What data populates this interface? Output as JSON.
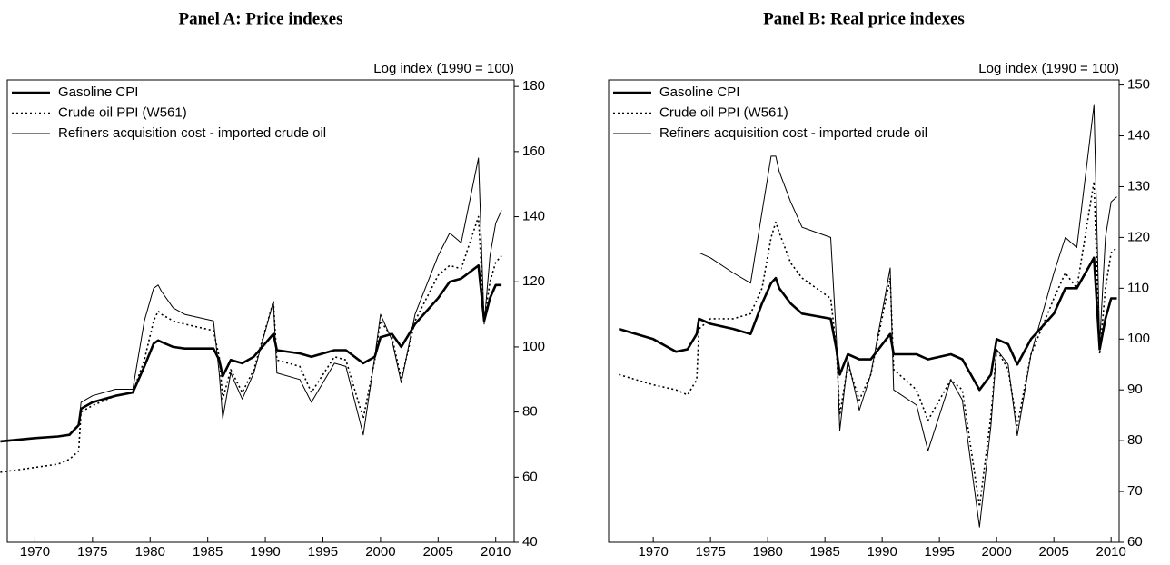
{
  "chart_data": [
    {
      "type": "line",
      "title": "Panel A:  Price indexes",
      "y_label": "Log index (1990 = 100)",
      "x": [
        1967,
        1970,
        1972,
        1973,
        1973.8,
        1974,
        1975,
        1977,
        1978.5,
        1979.5,
        1980.3,
        1980.7,
        1981,
        1982,
        1983,
        1985.5,
        1986,
        1986.3,
        1987,
        1988,
        1989,
        1990.7,
        1991,
        1993,
        1994,
        1996,
        1997,
        1998.5,
        1999.5,
        2000,
        2001,
        2001.8,
        2003,
        2005,
        2006,
        2007,
        2008.5,
        2009,
        2009.5,
        2010,
        2010.5
      ],
      "series": [
        {
          "name": "Gasoline CPI",
          "color": "#000000",
          "line_style": "thick",
          "values": [
            71,
            72,
            72.5,
            73,
            76,
            81,
            83,
            85,
            86,
            94,
            101,
            102,
            101.5,
            100,
            99.5,
            99.5,
            96,
            91,
            96,
            95,
            97,
            104,
            99,
            98,
            97,
            99,
            99,
            95,
            97,
            103,
            104,
            100,
            107,
            115,
            120,
            121,
            125,
            108,
            115,
            119,
            119
          ]
        },
        {
          "name": "Crude oil PPI (W561)",
          "color": "#000000",
          "line_style": "dotted",
          "values": [
            61.5,
            63,
            64,
            65.5,
            68,
            80,
            82,
            85,
            86,
            96,
            108,
            111,
            110,
            108,
            107,
            105,
            97,
            84,
            93,
            86,
            93,
            114,
            96,
            94,
            86,
            97,
            96,
            78,
            96,
            108,
            103,
            90,
            108,
            122,
            125,
            124,
            140,
            108,
            120,
            126,
            128
          ]
        },
        {
          "name": "Refiners acquisition cost - imported crude oil",
          "color": "#000000",
          "line_style": "thin",
          "values": [
            null,
            null,
            null,
            null,
            76,
            83,
            85,
            87,
            87,
            108,
            118,
            119,
            117,
            112,
            110,
            108,
            92,
            78,
            92,
            84,
            92,
            114,
            92,
            90,
            83,
            95,
            94,
            73,
            97,
            110,
            102,
            89,
            110,
            128,
            135,
            132,
            158,
            107,
            128,
            138,
            142
          ]
        }
      ],
      "xlim": [
        1967.6,
        2011.6
      ],
      "xticks": [
        1970,
        1975,
        1980,
        1985,
        1990,
        1995,
        2000,
        2005,
        2010
      ],
      "ylim": [
        40,
        182
      ],
      "yticks": [
        40,
        60,
        80,
        100,
        120,
        140,
        160,
        180
      ],
      "y_axis_side": "right",
      "legend": "top-left"
    },
    {
      "type": "line",
      "title": "Panel B:  Real price indexes",
      "y_label": "Log index (1990 = 100)",
      "x": [
        1967,
        1970,
        1972,
        1973,
        1973.8,
        1974,
        1975,
        1977,
        1978.5,
        1979.5,
        1980.3,
        1980.7,
        1981,
        1982,
        1983,
        1985.5,
        1986,
        1986.3,
        1987,
        1988,
        1989,
        1990.7,
        1991,
        1993,
        1994,
        1996,
        1997,
        1998.5,
        1999.5,
        2000,
        2001,
        2001.8,
        2003,
        2005,
        2006,
        2007,
        2008.5,
        2009,
        2009.5,
        2010,
        2010.5
      ],
      "series": [
        {
          "name": "Gasoline CPI",
          "color": "#000000",
          "line_style": "thick",
          "values": [
            102,
            100,
            97.5,
            98,
            101,
            104,
            103,
            102,
            101,
            107,
            111,
            112,
            110,
            107,
            105,
            104,
            98,
            93,
            97,
            96,
            96,
            101,
            97,
            97,
            96,
            97,
            96,
            90,
            93,
            100,
            99,
            95,
            100,
            105,
            110,
            110,
            116,
            98,
            104,
            108,
            108
          ]
        },
        {
          "name": "Crude oil PPI (W561)",
          "color": "#000000",
          "line_style": "dotted",
          "values": [
            93,
            91,
            90,
            89,
            92,
            102,
            104,
            104,
            105,
            110,
            120,
            123,
            121,
            115,
            112,
            108,
            98,
            85,
            95,
            88,
            93,
            112,
            94,
            90,
            84,
            92,
            90,
            67,
            85,
            98,
            94,
            83,
            97,
            108,
            113,
            110,
            131,
            97,
            110,
            117,
            118
          ]
        },
        {
          "name": "Refiners acquisition cost - imported crude oil",
          "color": "#000000",
          "line_style": "thin",
          "values": [
            null,
            null,
            null,
            null,
            null,
            117,
            116,
            113,
            111,
            125,
            136,
            136,
            133,
            127,
            122,
            120,
            100,
            82,
            96,
            86,
            93,
            114,
            90,
            87,
            78,
            92,
            88,
            63,
            83,
            98,
            95,
            81,
            97,
            113,
            120,
            118,
            146,
            99,
            120,
            127,
            128
          ]
        }
      ],
      "xlim": [
        1966.1,
        2010.7
      ],
      "xticks": [
        1970,
        1975,
        1980,
        1985,
        1990,
        1995,
        2000,
        2005,
        2010
      ],
      "ylim": [
        60,
        151
      ],
      "yticks": [
        60,
        70,
        80,
        90,
        100,
        110,
        120,
        130,
        140,
        150
      ],
      "y_axis_side": "right",
      "legend": "top-left"
    }
  ]
}
